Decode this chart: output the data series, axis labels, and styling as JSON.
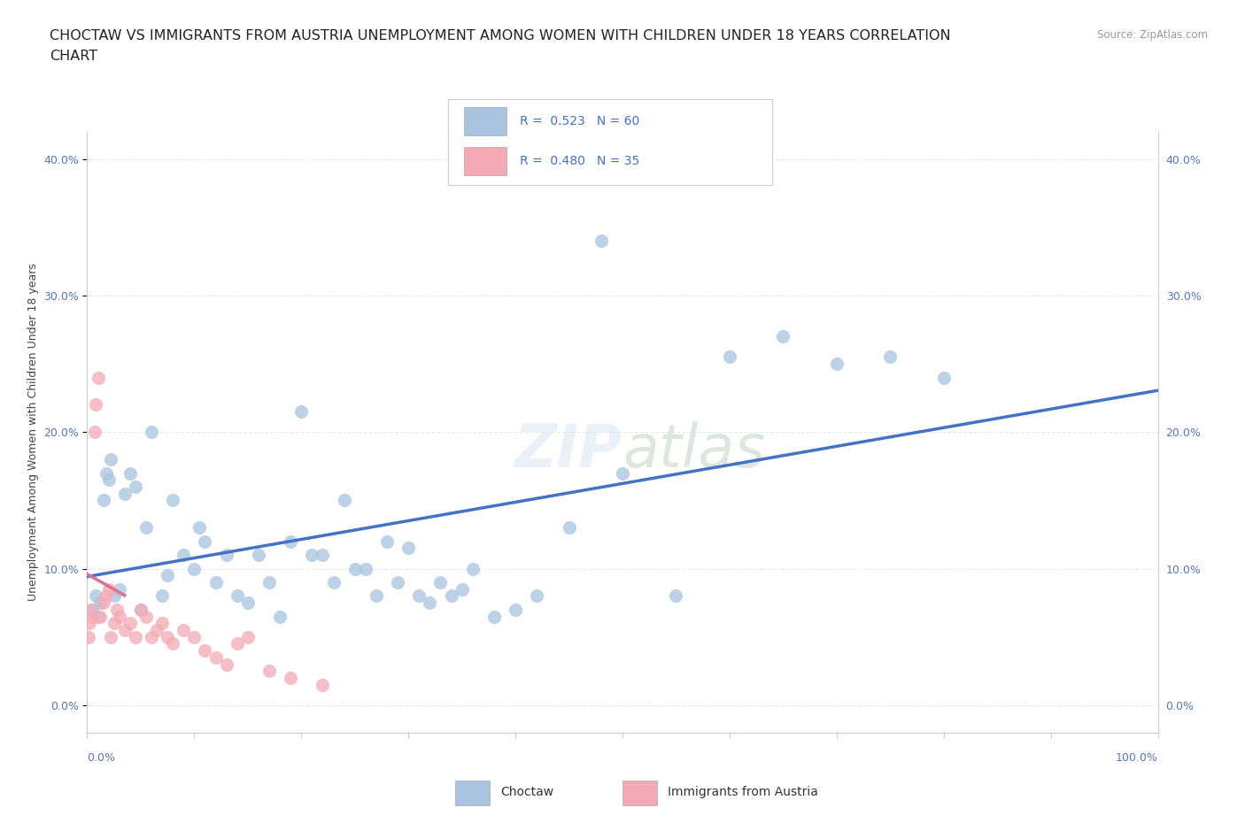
{
  "title_line1": "CHOCTAW VS IMMIGRANTS FROM AUSTRIA UNEMPLOYMENT AMONG WOMEN WITH CHILDREN UNDER 18 YEARS CORRELATION",
  "title_line2": "CHART",
  "source": "Source: ZipAtlas.com",
  "ylabel": "Unemployment Among Women with Children Under 18 years",
  "watermark": "ZIPatlas",
  "choctaw_R": 0.523,
  "choctaw_N": 60,
  "austria_R": 0.48,
  "austria_N": 35,
  "choctaw_color": "#a8c4e0",
  "austria_color": "#f4aab5",
  "choctaw_line_color": "#4472c4",
  "austria_line_color": "#e07090",
  "background_color": "#ffffff",
  "grid_color": "#e8e8e8",
  "ytick_labels": [
    "0.0%",
    "10.0%",
    "20.0%",
    "30.0%",
    "40.0%"
  ],
  "ytick_values": [
    0,
    10,
    20,
    30,
    40
  ],
  "xlim": [
    0,
    100
  ],
  "ylim": [
    -2,
    42
  ],
  "choctaw_x": [
    0.5,
    0.8,
    1.0,
    1.2,
    1.5,
    1.8,
    2.0,
    2.2,
    2.5,
    3.0,
    3.5,
    4.0,
    4.5,
    5.0,
    5.5,
    6.0,
    7.0,
    7.5,
    8.0,
    9.0,
    10.0,
    10.5,
    11.0,
    12.0,
    13.0,
    14.0,
    15.0,
    16.0,
    17.0,
    18.0,
    19.0,
    20.0,
    21.0,
    22.0,
    23.0,
    24.0,
    25.0,
    26.0,
    27.0,
    28.0,
    29.0,
    30.0,
    31.0,
    32.0,
    33.0,
    34.0,
    35.0,
    36.0,
    38.0,
    40.0,
    42.0,
    45.0,
    48.0,
    50.0,
    55.0,
    60.0,
    65.0,
    70.0,
    75.0,
    80.0
  ],
  "choctaw_y": [
    7.0,
    8.0,
    6.5,
    7.5,
    15.0,
    17.0,
    16.5,
    18.0,
    8.0,
    8.5,
    15.5,
    17.0,
    16.0,
    7.0,
    13.0,
    20.0,
    8.0,
    9.5,
    15.0,
    11.0,
    10.0,
    13.0,
    12.0,
    9.0,
    11.0,
    8.0,
    7.5,
    11.0,
    9.0,
    6.5,
    12.0,
    21.5,
    11.0,
    11.0,
    9.0,
    15.0,
    10.0,
    10.0,
    8.0,
    12.0,
    9.0,
    11.5,
    8.0,
    7.5,
    9.0,
    8.0,
    8.5,
    10.0,
    6.5,
    7.0,
    8.0,
    13.0,
    34.0,
    17.0,
    8.0,
    25.5,
    27.0,
    25.0,
    25.5,
    24.0
  ],
  "austria_x": [
    0.3,
    0.5,
    0.7,
    0.8,
    1.0,
    1.2,
    1.5,
    1.8,
    2.0,
    2.2,
    2.5,
    2.8,
    3.0,
    3.5,
    4.0,
    4.5,
    5.0,
    5.5,
    6.0,
    6.5,
    7.0,
    7.5,
    8.0,
    9.0,
    10.0,
    11.0,
    12.0,
    13.0,
    14.0,
    15.0,
    17.0,
    19.0,
    22.0,
    0.2,
    0.1
  ],
  "austria_y": [
    7.0,
    6.5,
    20.0,
    22.0,
    24.0,
    6.5,
    7.5,
    8.0,
    8.5,
    5.0,
    6.0,
    7.0,
    6.5,
    5.5,
    6.0,
    5.0,
    7.0,
    6.5,
    5.0,
    5.5,
    6.0,
    5.0,
    4.5,
    5.5,
    5.0,
    4.0,
    3.5,
    3.0,
    4.5,
    5.0,
    2.5,
    2.0,
    1.5,
    6.0,
    5.0
  ]
}
